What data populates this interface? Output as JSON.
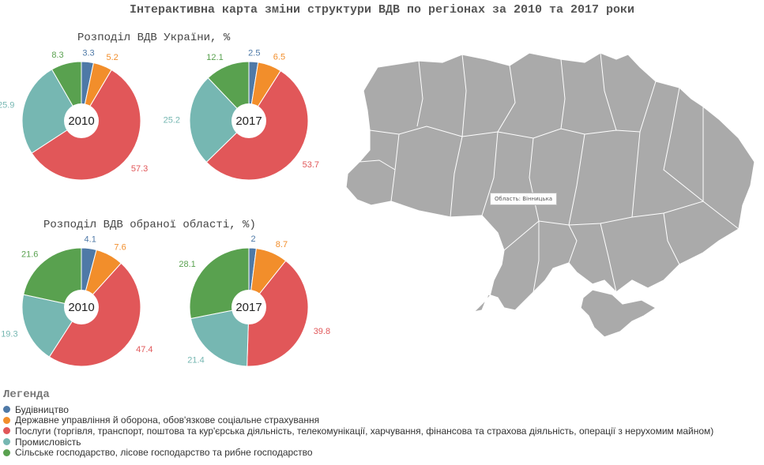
{
  "title": "Інтерактивна карта зміни структури ВДВ по регіонах за 2010 та 2017 роки",
  "subtitle_ukraine": "Розподіл ВДВ України, %",
  "subtitle_region": "Розподіл ВДВ обраної області, %)",
  "tooltip": "Область: Вінницька",
  "legend": {
    "title": "Легенда",
    "items": [
      "Будівництво",
      "Державне управління й оборона, обов'язкове соціальне страхування",
      "Послуги (торгівля, транспорт, поштова та кур'єрська діяльність, телекомунікації, харчування, фінансова та страхова діяльність, операції з нерухомим майном)",
      "Промисловість",
      "Сільське господарство, лісове господарство та рибне господарство"
    ]
  },
  "colors": [
    "#4e79a7",
    "#f28e2b",
    "#e15759",
    "#76b7b2",
    "#59a14f"
  ],
  "map_color": "#aaaaaa",
  "chart_data": [
    {
      "type": "pie",
      "center_label": "2010",
      "categories": [
        "Будівництво",
        "Державне управління й оборона",
        "Послуги",
        "Промисловість",
        "Сільське господарство"
      ],
      "values": [
        3.3,
        5.2,
        57.3,
        25.9,
        8.3
      ]
    },
    {
      "type": "pie",
      "center_label": "2017",
      "categories": [
        "Будівництво",
        "Державне управління й оборона",
        "Послуги",
        "Промисловість",
        "Сільське господарство"
      ],
      "values": [
        2.5,
        6.5,
        53.7,
        25.2,
        12.1
      ]
    },
    {
      "type": "pie",
      "center_label": "2010",
      "categories": [
        "Будівництво",
        "Державне управління й оборона",
        "Послуги",
        "Промисловість",
        "Сільське господарство"
      ],
      "values": [
        4.1,
        7.6,
        47.4,
        19.3,
        21.6
      ]
    },
    {
      "type": "pie",
      "center_label": "2017",
      "categories": [
        "Будівництво",
        "Державне управління й оборона",
        "Послуги",
        "Промисловість",
        "Сільське господарство"
      ],
      "values": [
        2,
        8.7,
        39.8,
        21.4,
        28.1
      ]
    }
  ]
}
